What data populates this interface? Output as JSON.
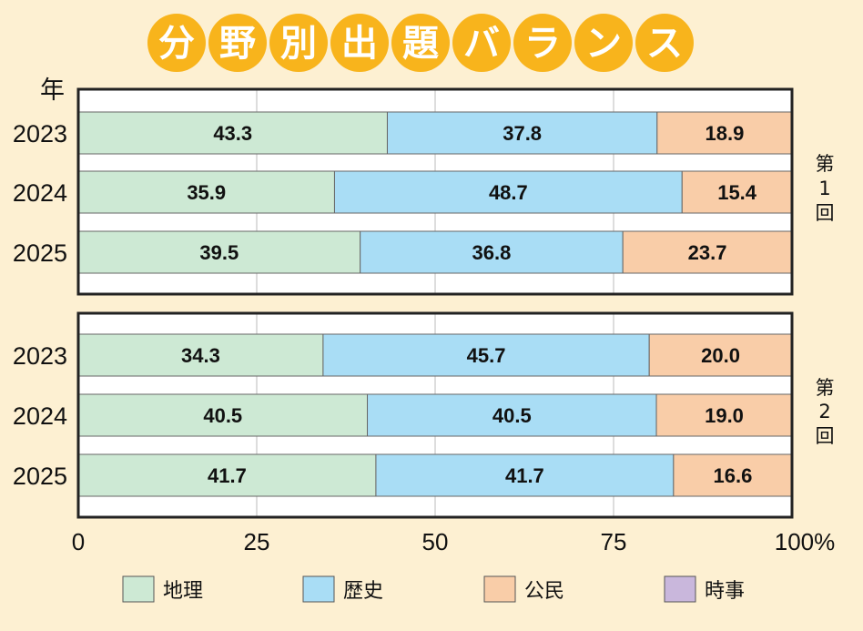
{
  "title": "分野別出題バランス",
  "colors": {
    "background": "#fdf0d2",
    "title_circle": "#f8b41c",
    "geography": "#cde9d4",
    "history": "#a9ddf5",
    "civics": "#f9cda8",
    "current_affairs": "#c9b7dc",
    "frame": "#222222",
    "grid": "#bbbbbb"
  },
  "chart_data": {
    "type": "bar",
    "orientation": "horizontal",
    "stacked": true,
    "title": "分野別出題バランス",
    "y_axis_title": "年",
    "x_ticks": [
      "0",
      "25",
      "50",
      "75",
      "100%"
    ],
    "xlim": [
      0,
      100
    ],
    "categories_order": [
      "地理",
      "歴史",
      "公民",
      "時事"
    ],
    "panels": [
      {
        "label": "第1回",
        "label_chars": [
          "第",
          "1",
          "回"
        ],
        "rows": [
          {
            "year": "2023",
            "values": [
              43.3,
              37.8,
              18.9
            ],
            "labels": [
              "43.3",
              "37.8",
              "18.9"
            ]
          },
          {
            "year": "2024",
            "values": [
              35.9,
              48.7,
              15.4
            ],
            "labels": [
              "35.9",
              "48.7",
              "15.4"
            ]
          },
          {
            "year": "2025",
            "values": [
              39.5,
              36.8,
              23.7
            ],
            "labels": [
              "39.5",
              "36.8",
              "23.7"
            ]
          }
        ]
      },
      {
        "label": "第2回",
        "label_chars": [
          "第",
          "2",
          "回"
        ],
        "rows": [
          {
            "year": "2023",
            "values": [
              34.3,
              45.7,
              20.0
            ],
            "labels": [
              "34.3",
              "45.7",
              "20.0"
            ]
          },
          {
            "year": "2024",
            "values": [
              40.5,
              40.5,
              19.0
            ],
            "labels": [
              "40.5",
              "40.5",
              "19.0"
            ]
          },
          {
            "year": "2025",
            "values": [
              41.7,
              41.7,
              16.6
            ],
            "labels": [
              "41.7",
              "41.7",
              "16.6"
            ]
          }
        ]
      }
    ],
    "legend": [
      {
        "label": "地理",
        "color": "#cde9d4"
      },
      {
        "label": "歴史",
        "color": "#a9ddf5"
      },
      {
        "label": "公民",
        "color": "#f9cda8"
      },
      {
        "label": "時事",
        "color": "#c9b7dc"
      }
    ],
    "legend_position": "bottom"
  }
}
